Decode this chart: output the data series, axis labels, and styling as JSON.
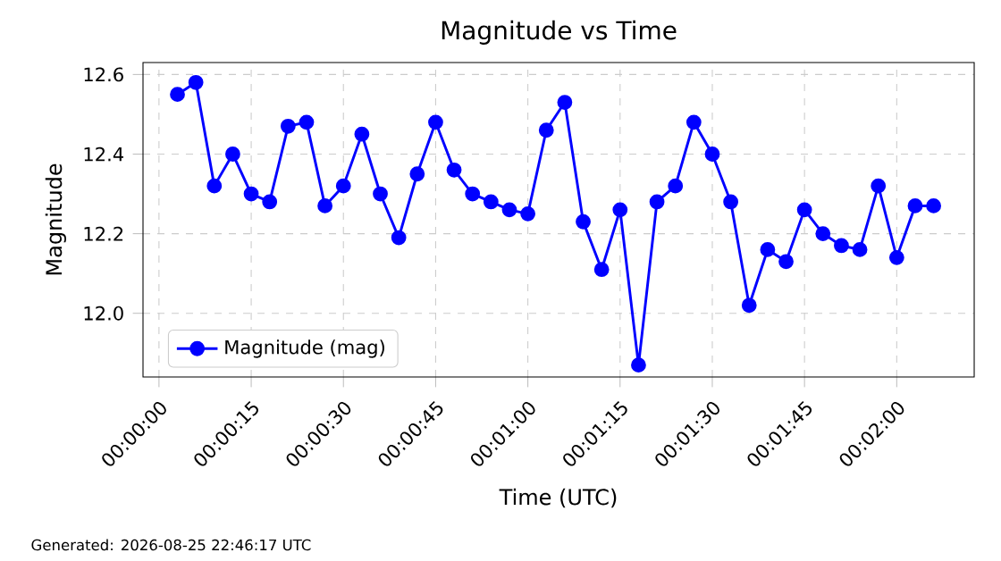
{
  "chart_data": {
    "type": "line",
    "title": "Magnitude vs Time",
    "xlabel": "Time (UTC)",
    "ylabel": "Magnitude",
    "x": [
      3,
      6,
      9,
      12,
      15,
      18,
      21,
      24,
      27,
      30,
      33,
      36,
      39,
      42,
      45,
      48,
      51,
      54,
      57,
      60,
      63,
      66,
      69,
      72,
      75,
      78,
      81,
      84,
      87,
      90,
      93,
      96,
      99,
      102,
      105,
      108,
      111,
      114,
      117,
      120,
      123,
      126
    ],
    "series": [
      {
        "name": "Magnitude (mag)",
        "color": "#0000ff",
        "values": [
          12.55,
          12.58,
          12.32,
          12.4,
          12.3,
          12.28,
          12.47,
          12.48,
          12.27,
          12.32,
          12.45,
          12.3,
          12.19,
          12.35,
          12.48,
          12.36,
          12.3,
          12.28,
          12.26,
          12.25,
          12.46,
          12.53,
          12.23,
          12.11,
          12.26,
          11.87,
          12.28,
          12.32,
          12.48,
          12.4,
          12.28,
          12.02,
          12.16,
          12.13,
          12.26,
          12.2,
          12.17,
          12.16,
          12.32,
          12.14,
          12.27,
          12.27
        ]
      }
    ],
    "xlim": [
      -2.6,
      132.6
    ],
    "ylim": [
      11.84,
      12.63
    ],
    "xticks": [
      {
        "value": 0,
        "label": "00:00:00"
      },
      {
        "value": 15,
        "label": "00:00:15"
      },
      {
        "value": 30,
        "label": "00:00:30"
      },
      {
        "value": 45,
        "label": "00:00:45"
      },
      {
        "value": 60,
        "label": "00:01:00"
      },
      {
        "value": 75,
        "label": "00:01:15"
      },
      {
        "value": 90,
        "label": "00:01:30"
      },
      {
        "value": 105,
        "label": "00:01:45"
      },
      {
        "value": 120,
        "label": "00:02:00"
      }
    ],
    "yticks": [
      {
        "value": 12.0,
        "label": "12.0"
      },
      {
        "value": 12.2,
        "label": "12.2"
      },
      {
        "value": 12.4,
        "label": "12.4"
      },
      {
        "value": 12.6,
        "label": "12.6"
      }
    ],
    "grid": true,
    "legend": "bottom left",
    "marker": "circle",
    "line_style": "solid",
    "annotations": [
      "Generated: 2026-08-25 22:46:17 UTC"
    ]
  }
}
